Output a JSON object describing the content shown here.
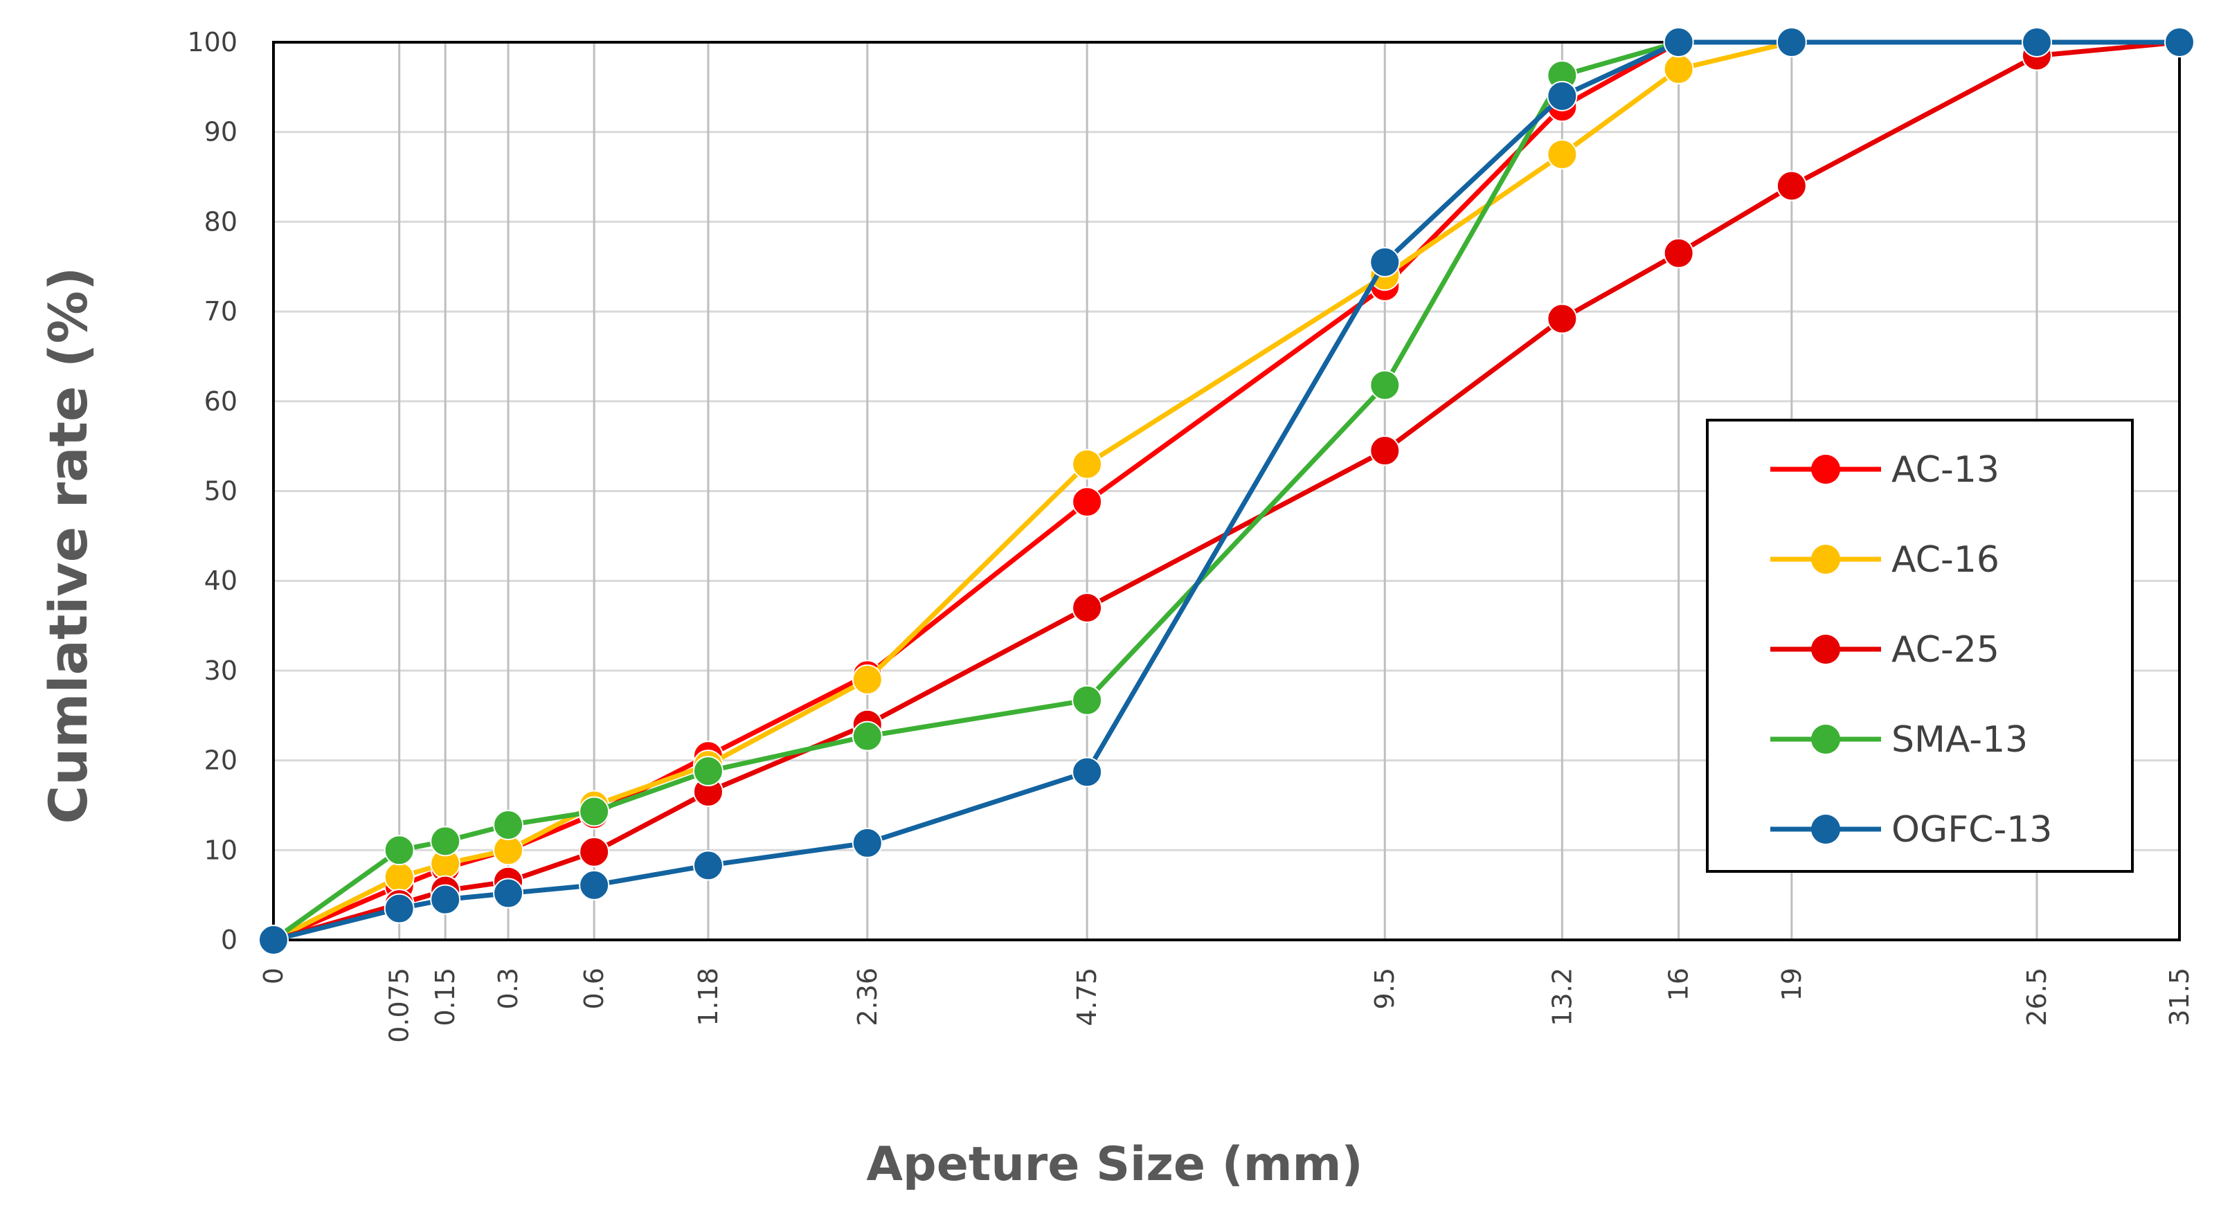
{
  "chart_data": {
    "type": "line",
    "title": "",
    "xlabel": "Apeture Size (mm)",
    "ylabel": "Cumlative rate (%)",
    "ylim": [
      0,
      100
    ],
    "y_ticks": [
      "0",
      "10",
      "20",
      "30",
      "40",
      "50",
      "60",
      "70",
      "80",
      "90",
      "100"
    ],
    "x_scale": "sieve (0.45 power)",
    "x": [
      0,
      0.075,
      0.15,
      0.3,
      0.6,
      1.18,
      2.36,
      4.75,
      9.5,
      13.2,
      16,
      19,
      26.5,
      31.5
    ],
    "x_tick_labels": [
      "0",
      "0.075",
      "0.15",
      "0.3",
      "0.6",
      "1.18",
      "2.36",
      "4.75",
      "9.5",
      "13.2",
      "16",
      "19",
      "26.5",
      "31.5"
    ],
    "grid": "vertical and horizontal",
    "legend_position": "right",
    "series": [
      {
        "name": "AC-13",
        "color": "#ff0000",
        "points": [
          [
            0,
            0
          ],
          [
            0.075,
            6
          ],
          [
            0.15,
            8
          ],
          [
            0.3,
            10
          ],
          [
            0.6,
            14
          ],
          [
            1.18,
            20.5
          ],
          [
            2.36,
            29.5
          ],
          [
            4.75,
            48.8
          ],
          [
            9.5,
            72.8
          ],
          [
            13.2,
            92.8
          ],
          [
            16,
            100
          ]
        ]
      },
      {
        "name": "AC-16",
        "color": "#ffc000",
        "points": [
          [
            0,
            0
          ],
          [
            0.075,
            7
          ],
          [
            0.15,
            8.5
          ],
          [
            0.3,
            10
          ],
          [
            0.6,
            15
          ],
          [
            1.18,
            19.5
          ],
          [
            2.36,
            29
          ],
          [
            4.75,
            53
          ],
          [
            9.5,
            74
          ],
          [
            13.2,
            87.5
          ],
          [
            16,
            97
          ],
          [
            19,
            100
          ]
        ]
      },
      {
        "name": "AC-25",
        "color": "#e60000",
        "points": [
          [
            0,
            0
          ],
          [
            0.075,
            4
          ],
          [
            0.15,
            5.5
          ],
          [
            0.3,
            6.5
          ],
          [
            0.6,
            9.8
          ],
          [
            1.18,
            16.5
          ],
          [
            2.36,
            24
          ],
          [
            4.75,
            37
          ],
          [
            9.5,
            54.5
          ],
          [
            13.2,
            69.2
          ],
          [
            16,
            76.5
          ],
          [
            19,
            84
          ],
          [
            26.5,
            98.5
          ],
          [
            31.5,
            100
          ]
        ]
      },
      {
        "name": "SMA-13",
        "color": "#3cb034",
        "points": [
          [
            0,
            0
          ],
          [
            0.075,
            10
          ],
          [
            0.15,
            11
          ],
          [
            0.3,
            12.8
          ],
          [
            0.6,
            14.3
          ],
          [
            1.18,
            18.8
          ],
          [
            2.36,
            22.7
          ],
          [
            4.75,
            26.7
          ],
          [
            9.5,
            61.8
          ],
          [
            13.2,
            96.3
          ],
          [
            16,
            100
          ]
        ]
      },
      {
        "name": "OGFC-13",
        "color": "#1263a0",
        "points": [
          [
            0,
            0
          ],
          [
            0.075,
            3.5
          ],
          [
            0.15,
            4.5
          ],
          [
            0.3,
            5.2
          ],
          [
            0.6,
            6.1
          ],
          [
            1.18,
            8.3
          ],
          [
            2.36,
            10.8
          ],
          [
            4.75,
            18.7
          ],
          [
            9.5,
            75.5
          ],
          [
            13.2,
            94
          ],
          [
            16,
            100
          ],
          [
            19,
            100
          ],
          [
            26.5,
            100
          ],
          [
            31.5,
            100
          ]
        ]
      }
    ]
  }
}
